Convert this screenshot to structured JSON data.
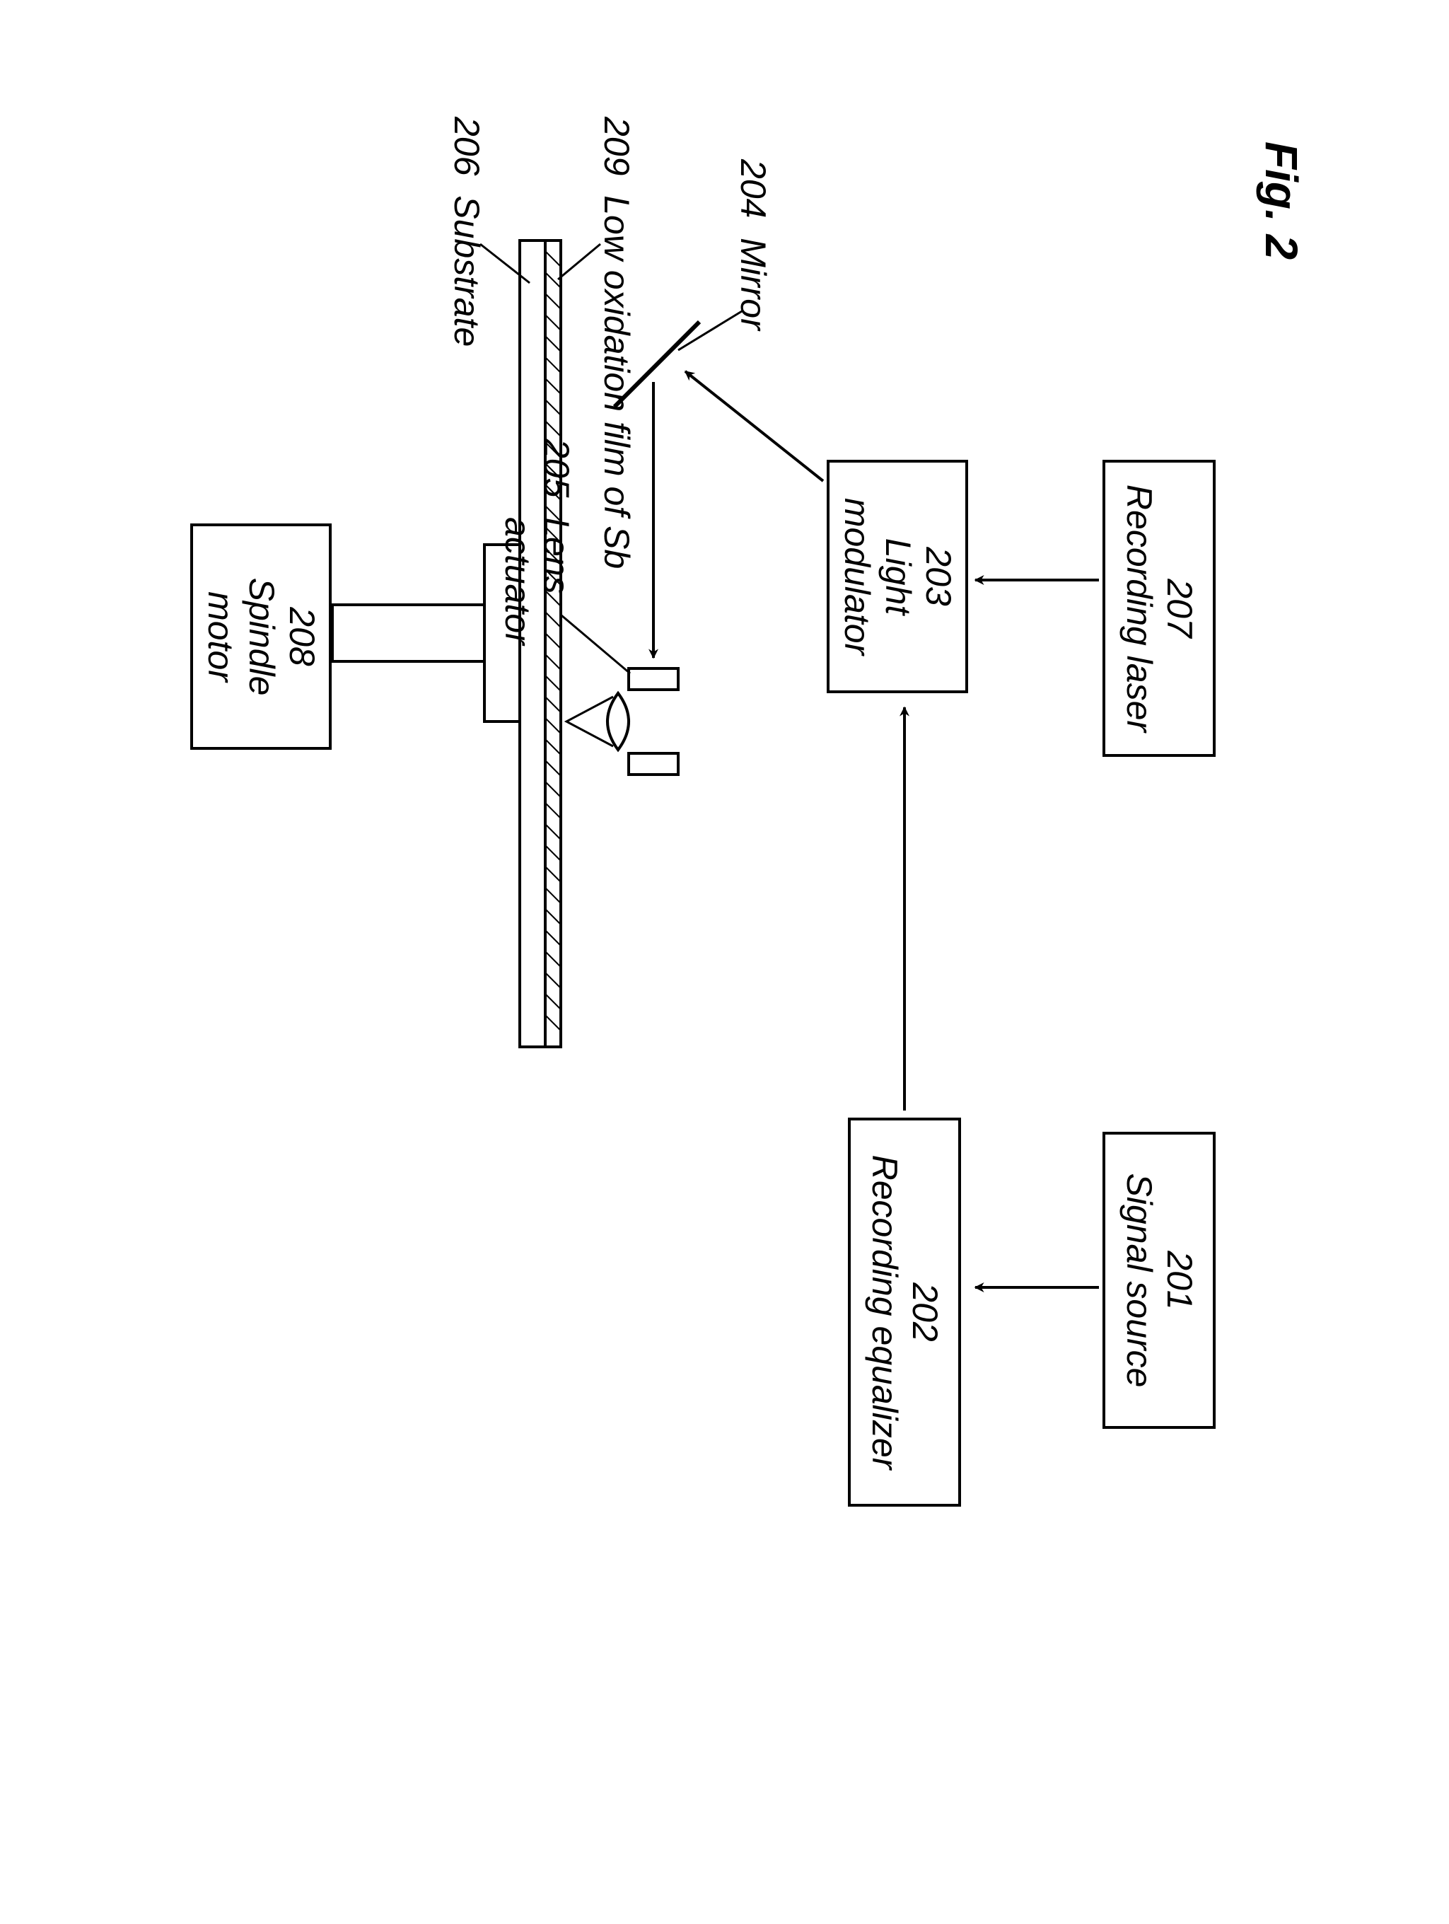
{
  "figure": {
    "label": "Fig. 2"
  },
  "boxes": {
    "recording_laser": {
      "num": "207",
      "label": "Recording laser"
    },
    "signal_source": {
      "num": "201",
      "label": "Signal source"
    },
    "light_modulator": {
      "num": "203",
      "label1": "Light",
      "label2": "modulator"
    },
    "recording_eq": {
      "num": "202",
      "label": "Recording equalizer"
    },
    "spindle_motor": {
      "num": "208",
      "label1": "Spindle",
      "label2": "motor"
    }
  },
  "labels": {
    "mirror": {
      "num": "204",
      "label": "Mirror"
    },
    "lens_actuator": {
      "num": "205",
      "label1": "Lens",
      "label2": "actuator"
    },
    "low_ox": {
      "num": "209",
      "label": "Low oxidation film of Sb"
    },
    "substrate": {
      "num": "206",
      "label": "Substrate"
    }
  },
  "style": {
    "stroke": "#000000",
    "stroke_width": 4,
    "arrow_fill": "#000000",
    "hatch_stroke": "#000000",
    "bg": "#ffffff"
  }
}
